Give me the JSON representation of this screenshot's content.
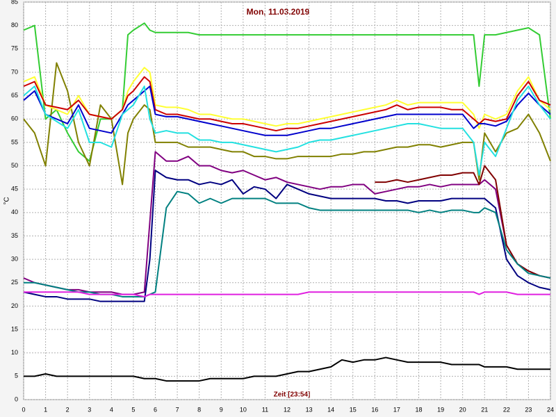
{
  "chart_data": {
    "type": "line",
    "title": "Mon, 11.03.2019",
    "ylabel": "°C",
    "xlabel": "Zeit [23:54]",
    "xlim": [
      0,
      24
    ],
    "ylim": [
      0,
      85
    ],
    "xticks": [
      0,
      1,
      2,
      3,
      4,
      5,
      6,
      7,
      8,
      9,
      10,
      11,
      12,
      13,
      14,
      15,
      16,
      17,
      18,
      19,
      20,
      21,
      22,
      23,
      24
    ],
    "yticks": [
      0,
      5,
      10,
      15,
      20,
      25,
      30,
      35,
      40,
      45,
      50,
      55,
      60,
      65,
      70,
      75,
      80,
      85
    ],
    "grid": true,
    "x": [
      0,
      0.5,
      1,
      1.5,
      2,
      2.5,
      3,
      3.5,
      4,
      4.5,
      4.75,
      5,
      5.5,
      5.75,
      6,
      6.5,
      7,
      7.5,
      8,
      8.5,
      9,
      9.5,
      10,
      10.5,
      11,
      11.5,
      12,
      12.5,
      13,
      13.5,
      14,
      14.5,
      15,
      15.5,
      16,
      16.5,
      17,
      17.5,
      18,
      18.5,
      19,
      19.5,
      20,
      20.5,
      20.75,
      21,
      21.5,
      22,
      22.5,
      23,
      23.5,
      24
    ],
    "series": [
      {
        "color": "#33cc33",
        "values": [
          79,
          80,
          60,
          62,
          57,
          53,
          51,
          60,
          60,
          62,
          78,
          79,
          80.5,
          79,
          78.5,
          78.5,
          78.5,
          78.5,
          78,
          78,
          78,
          78,
          78,
          78,
          78,
          78,
          78,
          78,
          78,
          78,
          78,
          78,
          78,
          78,
          78,
          78,
          78,
          78,
          78,
          78,
          78,
          78,
          78,
          78,
          67,
          78,
          78,
          78.5,
          79,
          79.5,
          78,
          60
        ]
      },
      {
        "color": "#808000",
        "values": [
          60,
          57,
          50,
          72,
          66,
          55,
          50,
          63,
          60,
          46,
          57,
          60,
          63,
          62,
          55,
          55,
          55,
          54,
          54,
          54,
          53.5,
          53,
          53,
          52,
          52,
          51.5,
          51.5,
          52,
          52,
          52,
          52,
          52.5,
          52.5,
          53,
          53,
          53.5,
          54,
          54,
          54.5,
          54.5,
          54,
          54.5,
          55,
          55,
          47,
          57,
          53,
          57,
          58,
          61,
          57,
          51
        ]
      },
      {
        "color": "#ffff33",
        "values": [
          68,
          69,
          63,
          62,
          61,
          65,
          61,
          60.5,
          60,
          62,
          66,
          68,
          71,
          70,
          63,
          62.5,
          62.5,
          62,
          61,
          61,
          60.5,
          60,
          60,
          59.5,
          59,
          58.5,
          59,
          59,
          59.5,
          60,
          60.5,
          61,
          61.5,
          62,
          62.5,
          63,
          64,
          63,
          63.5,
          63.5,
          63.5,
          63.5,
          63.5,
          61,
          58,
          61,
          60,
          61,
          66,
          69,
          64,
          62
        ]
      },
      {
        "color": "#cc0000",
        "values": [
          67,
          68,
          63,
          62.5,
          62,
          64,
          61,
          60.5,
          60,
          62,
          65,
          66,
          69,
          68,
          62,
          61,
          61,
          60.5,
          60,
          60,
          59.5,
          59,
          59,
          58.5,
          58,
          57.5,
          58,
          58,
          58.5,
          59,
          59.5,
          60,
          60.5,
          61,
          61.5,
          62,
          63,
          62,
          62.5,
          62.5,
          62.5,
          62,
          62,
          60,
          59,
          60,
          59.5,
          60,
          65,
          68,
          64,
          63
        ]
      },
      {
        "color": "#0000cc",
        "values": [
          64,
          66,
          61,
          60,
          59,
          63,
          58,
          57.5,
          57,
          61,
          63,
          64,
          66,
          67,
          61,
          60.5,
          60.5,
          60,
          59.5,
          59,
          58.5,
          58,
          57.5,
          57,
          56.5,
          56.5,
          56.5,
          57,
          57.5,
          58,
          58,
          58.5,
          59,
          59.5,
          60,
          60.5,
          61,
          61,
          61,
          61,
          61,
          61,
          61,
          58,
          59,
          59,
          58.5,
          59.5,
          63,
          65.5,
          63,
          61
        ]
      },
      {
        "color": "#22e0e0",
        "values": [
          65,
          67,
          61,
          59.5,
          58,
          62,
          55,
          55,
          54,
          61,
          62,
          63,
          67,
          60,
          57,
          57.5,
          57,
          57,
          55.5,
          55.5,
          55,
          55,
          54.5,
          54,
          53.5,
          53,
          53.5,
          54,
          55,
          55.5,
          55.5,
          56,
          56.5,
          57,
          57.5,
          58,
          58.5,
          59,
          59,
          58.5,
          58,
          58,
          58,
          55,
          48,
          55,
          52,
          58,
          64,
          67,
          63,
          60
        ]
      },
      {
        "color": "#800080",
        "values": [
          26,
          25,
          24.5,
          24,
          23.5,
          23.5,
          23,
          23,
          23,
          22.5,
          22.5,
          22.5,
          23,
          38,
          53,
          51,
          51,
          52,
          50,
          50,
          49,
          48.5,
          49,
          48,
          47,
          47.5,
          46.5,
          46,
          45.5,
          45,
          45.5,
          45.5,
          46,
          46,
          44,
          44.5,
          45,
          45.5,
          45.5,
          46,
          45.5,
          46,
          46,
          46,
          46,
          47,
          45,
          33,
          29,
          27.5,
          26.5,
          26
        ]
      },
      {
        "color": "#800000",
        "values": [
          null,
          null,
          null,
          null,
          null,
          null,
          null,
          null,
          null,
          null,
          null,
          null,
          null,
          null,
          null,
          null,
          null,
          null,
          null,
          null,
          null,
          null,
          null,
          null,
          null,
          null,
          null,
          null,
          null,
          null,
          null,
          null,
          null,
          null,
          46.5,
          46.5,
          47,
          46.5,
          47,
          47.5,
          48,
          48,
          48.5,
          48.5,
          46,
          50,
          47,
          33,
          29,
          27.5,
          26.5,
          26
        ]
      },
      {
        "color": "#000080",
        "values": [
          23,
          22.5,
          22,
          22,
          21.5,
          21.5,
          21.5,
          21,
          21,
          21,
          21,
          21,
          21,
          30,
          49,
          47.5,
          47,
          47,
          46,
          46.5,
          46,
          47,
          44,
          45.5,
          45,
          43,
          46,
          45,
          44,
          43.5,
          43,
          43,
          43,
          43,
          43,
          42.5,
          42.5,
          42,
          42.5,
          42.5,
          42.5,
          43,
          43,
          43,
          43,
          43,
          41,
          30,
          26.5,
          25,
          24,
          23.5
        ]
      },
      {
        "color": "#008080",
        "values": [
          25,
          25,
          24.5,
          24,
          23.5,
          23,
          23,
          22.5,
          22.5,
          22,
          22,
          22,
          22,
          22.5,
          23,
          41,
          44.5,
          44,
          42,
          43,
          42,
          43,
          43,
          43,
          43,
          42,
          42,
          42,
          41,
          40.5,
          40.5,
          40.5,
          40.5,
          40.5,
          40.5,
          40.5,
          40.5,
          40.5,
          40,
          40.5,
          40,
          40.5,
          40.5,
          40,
          40,
          41,
          40,
          32,
          29,
          27,
          26.5,
          26
        ]
      },
      {
        "color": "#e020e0",
        "values": [
          23,
          23,
          23,
          23,
          23,
          23,
          22.5,
          22.5,
          22.5,
          22.5,
          22.5,
          22.5,
          22,
          22.5,
          22.5,
          22.5,
          22.5,
          22.5,
          22.5,
          22.5,
          22.5,
          22.5,
          22.5,
          22.5,
          22.5,
          22.5,
          22.5,
          22.5,
          23,
          23,
          23,
          23,
          23,
          23,
          23,
          23,
          23,
          23,
          23,
          23,
          23,
          23,
          23,
          23,
          22.5,
          23,
          23,
          23,
          22.5,
          22.5,
          22.5,
          22.5
        ]
      },
      {
        "color": "#000000",
        "values": [
          5,
          5,
          5.5,
          5,
          5,
          5,
          5,
          5,
          5,
          5,
          5,
          5,
          4.5,
          4.5,
          4.5,
          4,
          4,
          4,
          4,
          4.5,
          4.5,
          4.5,
          4.5,
          5,
          5,
          5,
          5.5,
          6,
          6,
          6.5,
          7,
          8.5,
          8,
          8.5,
          8.5,
          9,
          8.5,
          8,
          8,
          8,
          8,
          7.5,
          7.5,
          7.5,
          7.5,
          7,
          7,
          7,
          6.5,
          6.5,
          6.5,
          6.5
        ]
      }
    ]
  }
}
